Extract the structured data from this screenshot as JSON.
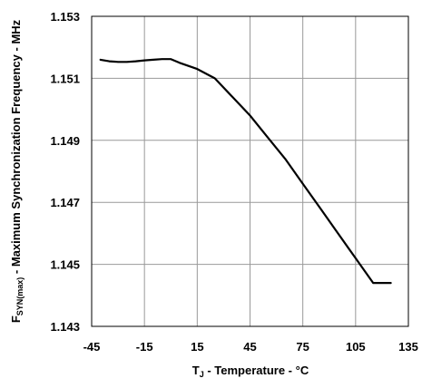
{
  "chart_data": {
    "type": "line",
    "title": "",
    "xlabel": {
      "prefix": "T",
      "subscript": "J",
      "suffix": " - Temperature - °C"
    },
    "ylabel": {
      "prefix": "F",
      "subscript": "SYN(max)",
      "suffix": " - Maximum Synchronization  Frequency - MHz"
    },
    "xlim": [
      -45,
      135
    ],
    "ylim": [
      1.143,
      1.153
    ],
    "x_ticks": [
      "-45",
      "-15",
      "15",
      "45",
      "75",
      "105",
      "135"
    ],
    "x_tick_values": [
      -45,
      -15,
      15,
      45,
      75,
      105,
      135
    ],
    "y_ticks": [
      "1.153",
      "1.151",
      "1.149",
      "1.147",
      "1.145",
      "1.143"
    ],
    "y_tick_values": [
      1.153,
      1.151,
      1.149,
      1.147,
      1.145,
      1.143
    ],
    "grid": true,
    "line_color": "#000000",
    "grid_color": "#999999",
    "series": [
      {
        "x": [
          -40,
          -35,
          -30,
          -25,
          -20,
          -15,
          -10,
          -5,
          0,
          5,
          10,
          15,
          25,
          35,
          45,
          55,
          65,
          75,
          85,
          95,
          105,
          115,
          125
        ],
        "y": [
          1.1516,
          1.15155,
          1.15153,
          1.15153,
          1.15155,
          1.15158,
          1.1516,
          1.15162,
          1.15162,
          1.1515,
          1.1514,
          1.1513,
          1.151,
          1.1504,
          1.1498,
          1.1491,
          1.1484,
          1.1476,
          1.1468,
          1.146,
          1.1452,
          1.1444,
          1.1444
        ]
      }
    ]
  }
}
